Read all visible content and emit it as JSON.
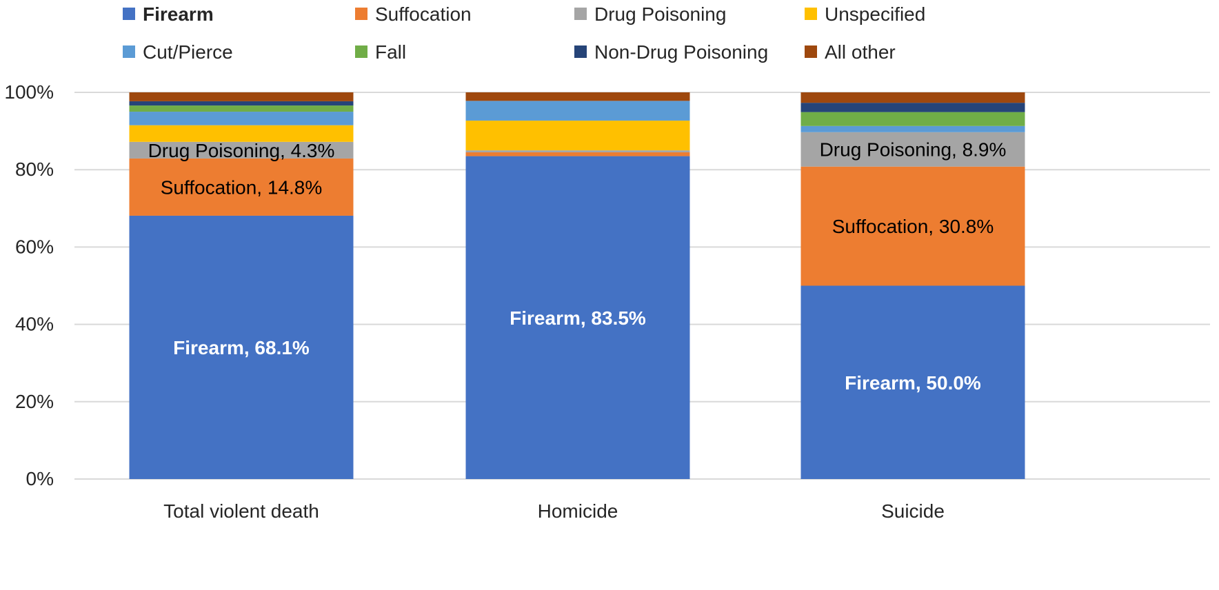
{
  "chart_data": {
    "type": "bar",
    "stacked": true,
    "categories": [
      "Total violent death",
      "Homicide",
      "Suicide"
    ],
    "series": [
      {
        "name": "Firearm",
        "values": [
          68.1,
          83.5,
          50.0
        ],
        "color": "#4472C4",
        "bold_legend": true
      },
      {
        "name": "Suffocation",
        "values": [
          14.8,
          1.0,
          30.8
        ],
        "color": "#ED7D31"
      },
      {
        "name": "Drug Poisoning",
        "values": [
          4.3,
          0.5,
          8.9
        ],
        "color": "#A5A5A5"
      },
      {
        "name": "Unspecified",
        "values": [
          4.3,
          7.7,
          0.0
        ],
        "color": "#FFC000"
      },
      {
        "name": "Cut/Pierce",
        "values": [
          3.5,
          5.1,
          1.6
        ],
        "color": "#5B9BD5"
      },
      {
        "name": "Fall",
        "values": [
          1.6,
          0.0,
          3.6
        ],
        "color": "#70AD47"
      },
      {
        "name": "Non-Drug Poisoning",
        "values": [
          1.1,
          0.0,
          2.4
        ],
        "color": "#264478"
      },
      {
        "name": "All other",
        "values": [
          2.3,
          2.2,
          2.7
        ],
        "color": "#9E480E"
      }
    ],
    "data_labels": [
      {
        "category": "Total violent death",
        "series": "Firearm",
        "text": "Firearm, 68.1%",
        "color": "#FFFFFF",
        "bold": true
      },
      {
        "category": "Total violent death",
        "series": "Suffocation",
        "text": "Suffocation, 14.8%",
        "color": "#000000",
        "bold": false
      },
      {
        "category": "Total violent death",
        "series": "Drug Poisoning",
        "text": "Drug Poisoning, 4.3%",
        "color": "#000000",
        "bold": false
      },
      {
        "category": "Homicide",
        "series": "Firearm",
        "text": "Firearm, 83.5%",
        "color": "#FFFFFF",
        "bold": true
      },
      {
        "category": "Suicide",
        "series": "Firearm",
        "text": "Firearm, 50.0%",
        "color": "#FFFFFF",
        "bold": true
      },
      {
        "category": "Suicide",
        "series": "Suffocation",
        "text": "Suffocation, 30.8%",
        "color": "#000000",
        "bold": false
      },
      {
        "category": "Suicide",
        "series": "Drug Poisoning",
        "text": "Drug Poisoning, 8.9%",
        "color": "#000000",
        "bold": false
      }
    ],
    "yticks": [
      "0%",
      "20%",
      "40%",
      "60%",
      "80%",
      "100%"
    ],
    "ylim": [
      0,
      100
    ],
    "grid": true,
    "gridline_color": "#D9D9D9",
    "legend_position": "top",
    "title": "",
    "xlabel": "",
    "ylabel": ""
  }
}
